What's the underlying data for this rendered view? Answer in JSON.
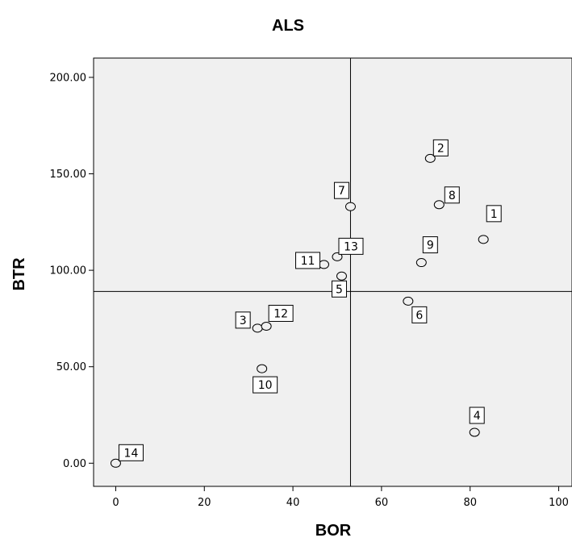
{
  "chart_data": {
    "type": "scatter",
    "title": "ALS",
    "xlabel": "BOR",
    "ylabel": "BTR",
    "xlim": [
      -5,
      103
    ],
    "ylim": [
      -12,
      210
    ],
    "xticks": [
      0,
      20,
      40,
      60,
      80,
      100
    ],
    "xtick_labels": [
      "0",
      "20",
      "40",
      "60",
      "80",
      "100"
    ],
    "yticks": [
      0,
      50,
      100,
      150,
      200
    ],
    "ytick_labels": [
      "0.00",
      "50.00",
      "100.00",
      "150.00",
      "200.00"
    ],
    "reference_lines": {
      "x": 53,
      "y": 89
    },
    "grid": false,
    "points": [
      {
        "label": "1",
        "x": 83,
        "y": 116
      },
      {
        "label": "2",
        "x": 71,
        "y": 158
      },
      {
        "label": "3",
        "x": 32,
        "y": 70
      },
      {
        "label": "4",
        "x": 81,
        "y": 16
      },
      {
        "label": "5",
        "x": 51,
        "y": 97
      },
      {
        "label": "6",
        "x": 66,
        "y": 84
      },
      {
        "label": "7",
        "x": 53,
        "y": 133
      },
      {
        "label": "8",
        "x": 73,
        "y": 134
      },
      {
        "label": "9",
        "x": 69,
        "y": 104
      },
      {
        "label": "10",
        "x": 33,
        "y": 49
      },
      {
        "label": "11",
        "x": 47,
        "y": 103
      },
      {
        "label": "12",
        "x": 34,
        "y": 71
      },
      {
        "label": "13",
        "x": 50,
        "y": 107
      },
      {
        "label": "14",
        "x": 0,
        "y": 0
      }
    ]
  }
}
